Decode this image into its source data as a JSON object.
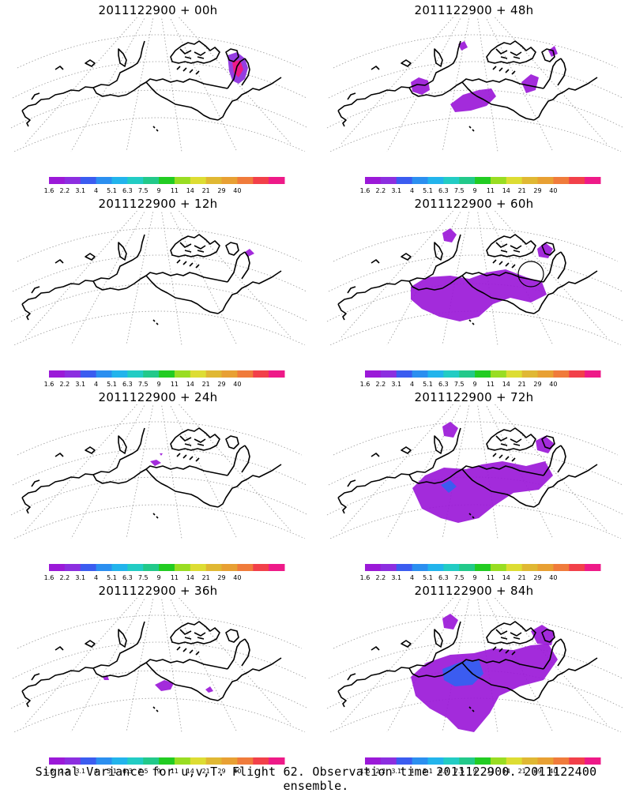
{
  "footer_caption": "Signal Variance for u,v,T. Flight 62. Observation time 2011122900. 2011122400 ensemble.",
  "colorbar": {
    "tick_labels": [
      "1.6",
      "2.2",
      "3.1",
      "4",
      "5.1",
      "6.3",
      "7.5",
      "9",
      "11",
      "14",
      "21",
      "29",
      "40"
    ],
    "colors": [
      "#9b19d8",
      "#8c2ee0",
      "#3b5cf0",
      "#2b8ff0",
      "#22b4ec",
      "#22ccc4",
      "#22c98a",
      "#22cc22",
      "#99dd22",
      "#dddd33",
      "#e0b833",
      "#e8a033",
      "#f07b3b",
      "#f2404a",
      "#ee1a88"
    ]
  },
  "panels": [
    {
      "title": "2011122900 + 00h",
      "lead_hours": 0
    },
    {
      "title": "2011122900 + 48h",
      "lead_hours": 48
    },
    {
      "title": "2011122900 + 12h",
      "lead_hours": 12
    },
    {
      "title": "2011122900 + 60h",
      "lead_hours": 60
    },
    {
      "title": "2011122900 + 24h",
      "lead_hours": 24
    },
    {
      "title": "2011122900 + 72h",
      "lead_hours": 72
    },
    {
      "title": "2011122900 + 36h",
      "lead_hours": 36
    },
    {
      "title": "2011122900 + 84h",
      "lead_hours": 84
    }
  ],
  "map": {
    "projection": "polar stereographic sector",
    "region": "North Pacific / Alaska",
    "coastline_color": "#000000",
    "grid_color": "#999999"
  }
}
